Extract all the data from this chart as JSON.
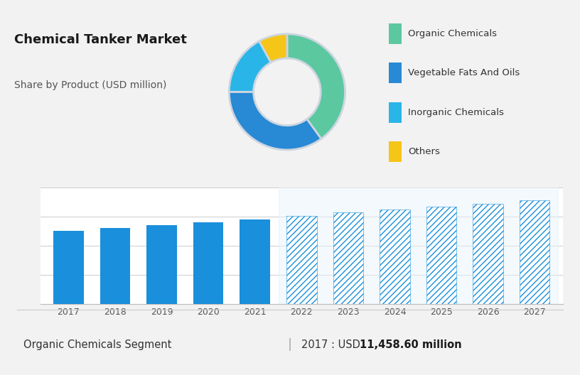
{
  "title": "Chemical Tanker Market",
  "subtitle": "Share by Product (USD million)",
  "bg_top": "#cdd5e0",
  "bg_bottom": "#f2f2f2",
  "bg_bar": "#f7f7f7",
  "donut_colors": [
    "#5bc8a0",
    "#2889d4",
    "#29b5e8",
    "#f5c518"
  ],
  "donut_labels": [
    "Organic Chemicals",
    "Vegetable Fats And Oils",
    "Inorganic Chemicals",
    "Others"
  ],
  "donut_sizes": [
    40,
    35,
    17,
    8
  ],
  "bar_years_solid": [
    2017,
    2018,
    2019,
    2020,
    2021
  ],
  "bar_values_solid": [
    75,
    78,
    81,
    84,
    87
  ],
  "bar_years_hatched": [
    2022,
    2023,
    2024,
    2025,
    2026,
    2027
  ],
  "bar_values_hatched": [
    91,
    94,
    97,
    100,
    103,
    107
  ],
  "bar_color_solid": "#1a8fdb",
  "bar_color_hatched_edge": "#1a8fdb",
  "bar_color_hatched_face": "#ffffff",
  "footer_left": "Organic Chemicals Segment",
  "footer_right_plain": "2017 : USD ",
  "footer_right_bold": "11,458.60 million",
  "ylim": [
    0,
    120
  ],
  "bar_bg_color": "#e8f4fb"
}
